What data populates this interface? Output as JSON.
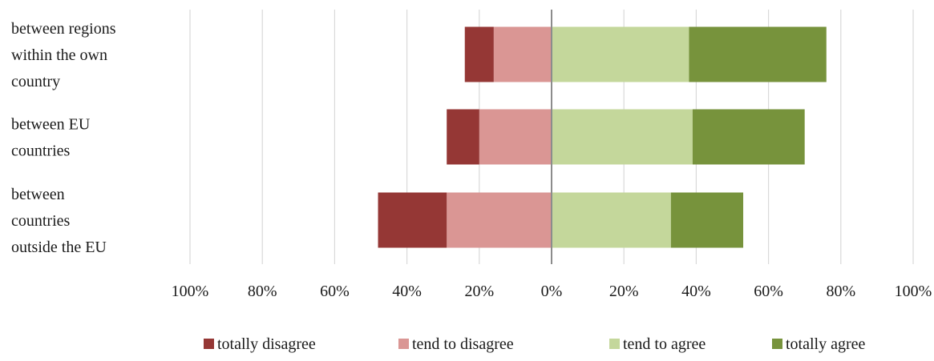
{
  "chart_data": {
    "type": "bar",
    "orientation": "horizontal",
    "stacking": "diverging",
    "categories": [
      [
        "between regions",
        "within the own",
        "country"
      ],
      [
        "between EU",
        "countries"
      ],
      [
        "between",
        "countries",
        "outside the EU"
      ]
    ],
    "series": [
      {
        "name": "totally disagree",
        "color": "#953735",
        "side": "negative",
        "values": [
          8,
          9,
          19
        ]
      },
      {
        "name": "tend to disagree",
        "color": "#DA9694",
        "side": "negative",
        "values": [
          16,
          20,
          29
        ]
      },
      {
        "name": "tend to agree",
        "color": "#C4D79B",
        "side": "positive",
        "values": [
          38,
          39,
          33
        ]
      },
      {
        "name": "totally agree",
        "color": "#77933C",
        "side": "positive",
        "values": [
          38,
          31,
          20
        ]
      }
    ],
    "xlim": [
      -100,
      100
    ],
    "xticks": [
      -100,
      -80,
      -60,
      -40,
      -20,
      0,
      20,
      40,
      60,
      80,
      100
    ],
    "xtick_labels": [
      "100%",
      "80%",
      "60%",
      "40%",
      "20%",
      "0%",
      "20%",
      "40%",
      "60%",
      "80%",
      "100%"
    ],
    "grid": true,
    "legend_position": "bottom",
    "title": "",
    "xlabel": "",
    "ylabel": ""
  }
}
